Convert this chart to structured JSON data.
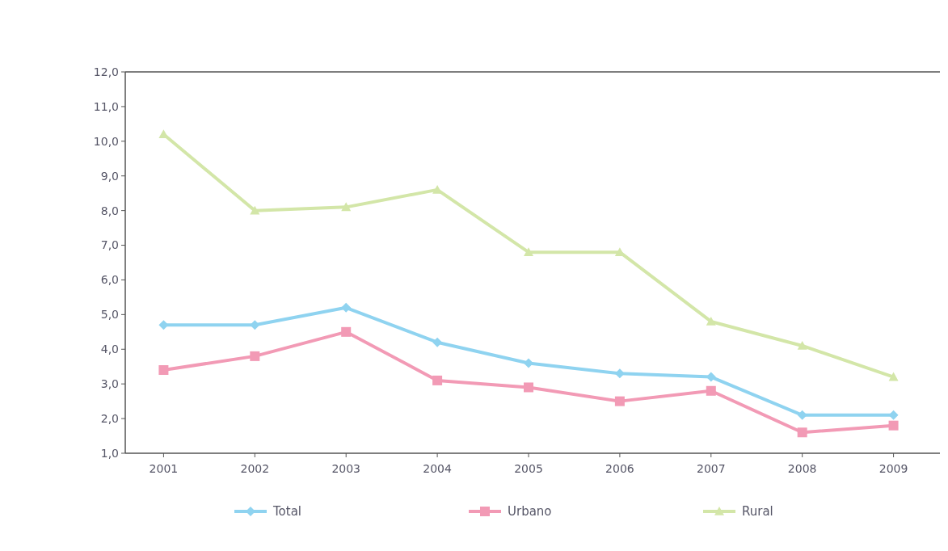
{
  "chart_data": {
    "type": "line",
    "categories": [
      "2001",
      "2002",
      "2003",
      "2004",
      "2005",
      "2006",
      "2007",
      "2008",
      "2009"
    ],
    "series": [
      {
        "name": "Total",
        "color": "#8fd3f0",
        "marker": "diamond",
        "values": [
          4.7,
          4.7,
          5.2,
          4.2,
          3.6,
          3.3,
          3.2,
          2.1,
          2.1
        ]
      },
      {
        "name": "Urbano",
        "color": "#f29ab5",
        "marker": "square",
        "values": [
          3.4,
          3.8,
          4.5,
          3.1,
          2.9,
          2.5,
          2.8,
          1.6,
          1.8
        ]
      },
      {
        "name": "Rural",
        "color": "#d3e6a8",
        "marker": "triangle",
        "values": [
          10.2,
          8.0,
          8.1,
          8.6,
          6.8,
          6.8,
          4.8,
          4.1,
          3.2
        ]
      }
    ],
    "ylim": [
      1,
      12
    ],
    "yticks": [
      {
        "value": 1,
        "label": "1,0"
      },
      {
        "value": 2,
        "label": "2,0"
      },
      {
        "value": 3,
        "label": "3,0"
      },
      {
        "value": 4,
        "label": "4,0"
      },
      {
        "value": 5,
        "label": "5,0"
      },
      {
        "value": 6,
        "label": "6,0"
      },
      {
        "value": 7,
        "label": "7,0"
      },
      {
        "value": 8,
        "label": "8,0"
      },
      {
        "value": 9,
        "label": "9,0"
      },
      {
        "value": 10,
        "label": "10,0"
      },
      {
        "value": 11,
        "label": "11,0"
      },
      {
        "value": 12,
        "label": "12,0"
      }
    ],
    "grid": false,
    "legend": "bottom",
    "line_style": "solid"
  }
}
